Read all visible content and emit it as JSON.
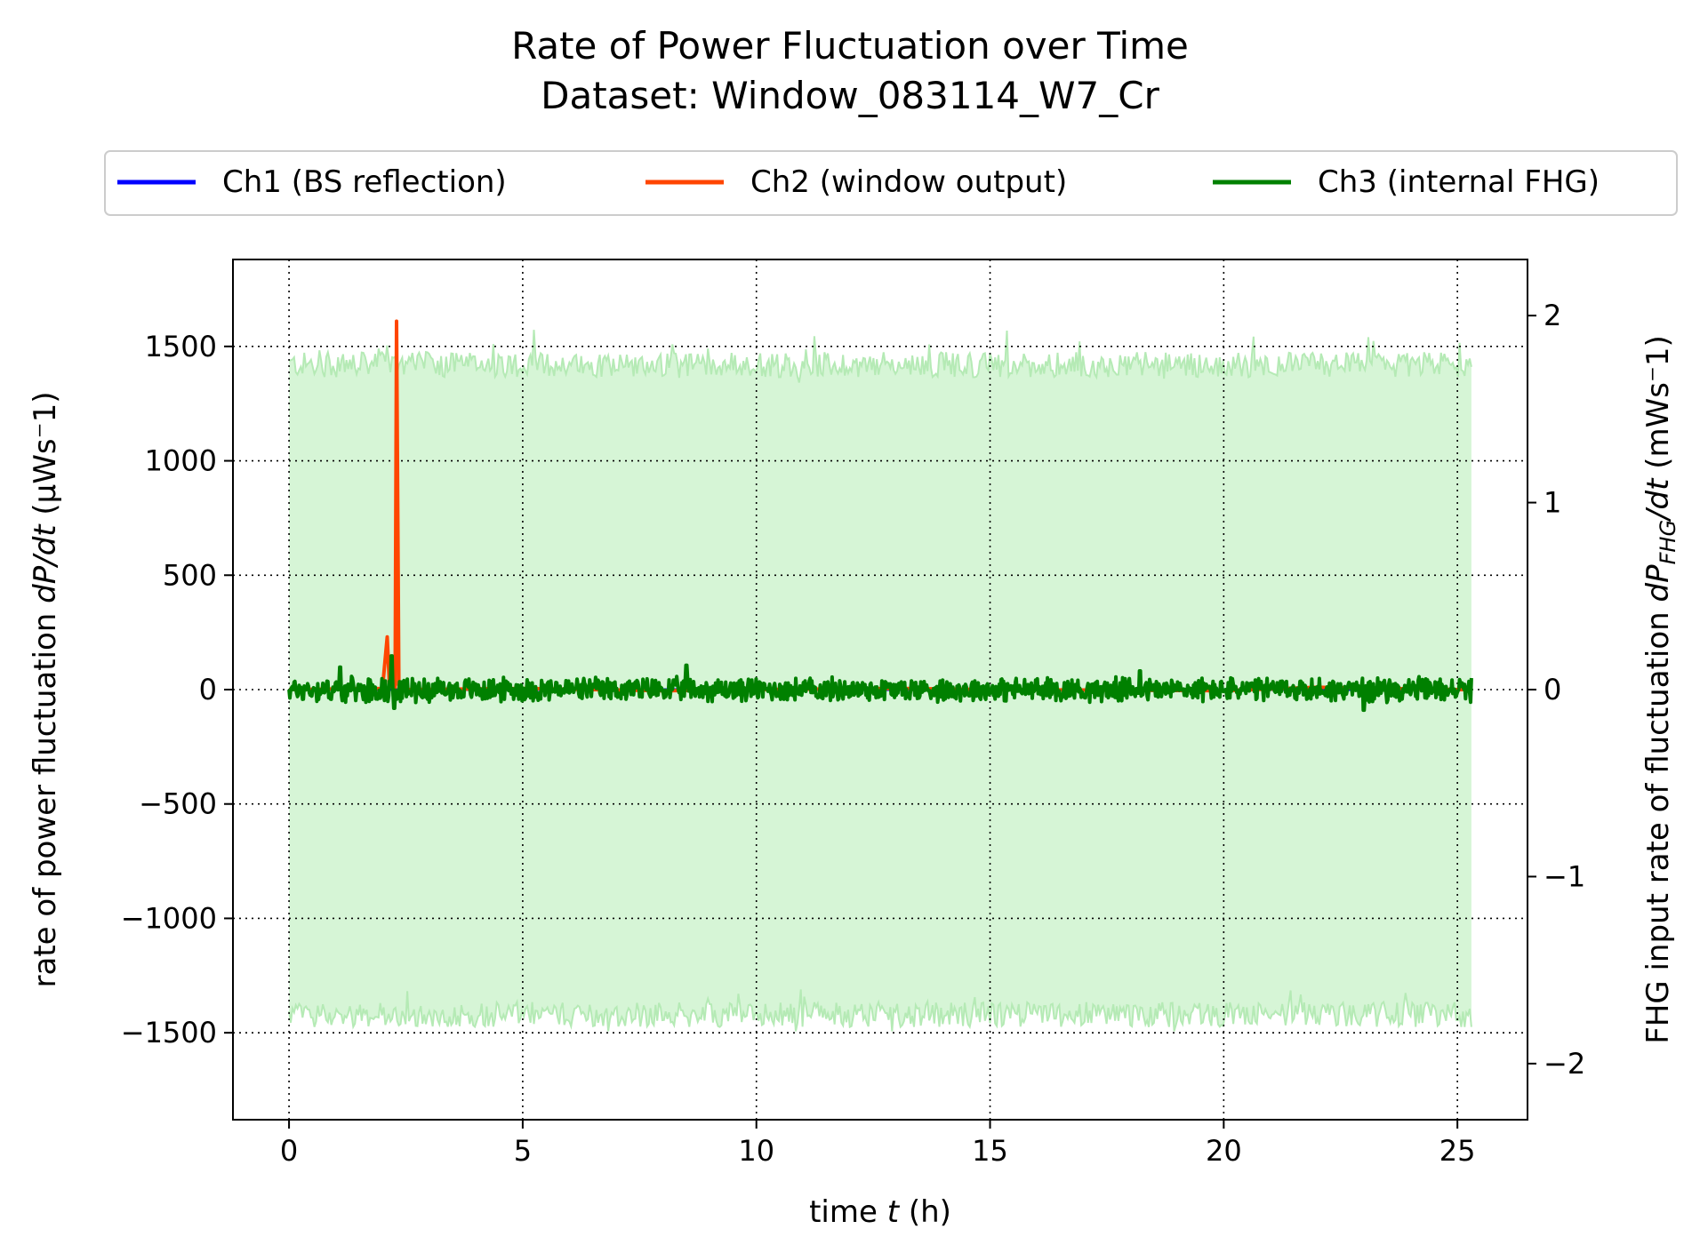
{
  "chart_data": {
    "type": "line",
    "title": "Rate of Power Fluctuation over Time",
    "subtitle": "Dataset: Window_083114_W7_Cr",
    "xlabel_prefix": "time ",
    "xlabel_var": "t",
    "xlabel_suffix": " (h)",
    "ylabel_left_prefix": "rate of power fluctuation ",
    "ylabel_left_var": "dP/dt",
    "ylabel_left_unit": " (μWs⁻1)",
    "ylabel_right_prefix": "FHG input rate of fluctuation ",
    "ylabel_right_var": "dP",
    "ylabel_right_sub": "FHG",
    "ylabel_right_tail": "/dt",
    "ylabel_right_unit": " (mWs⁻1)",
    "xlim": [
      -1.2,
      26.5
    ],
    "ylim_left": [
      -1880,
      1880
    ],
    "ylim_right": [
      -2.3,
      2.3
    ],
    "xticks": [
      0,
      5,
      10,
      15,
      20,
      25
    ],
    "yticks_left": [
      1500,
      1000,
      500,
      0,
      -500,
      -1000,
      -1500
    ],
    "yticks_left_labels": [
      "1500",
      "1000",
      "500",
      "0",
      "−500",
      "−1000",
      "−1500"
    ],
    "yticks_right": [
      2,
      1,
      0,
      -1,
      -2
    ],
    "yticks_right_labels": [
      "2",
      "1",
      "0",
      "−1",
      "−2"
    ],
    "grid": true,
    "legend_position": "top, above plot",
    "series": [
      {
        "name": "Ch1 (BS reflection)",
        "color": "#0000ff",
        "axis": "left",
        "points": [
          [
            0,
            0
          ],
          [
            25.3,
            0
          ]
        ]
      },
      {
        "name": "Ch2 (window output)",
        "color": "#ff4500",
        "axis": "left",
        "points": [
          [
            0,
            0
          ],
          [
            2.0,
            5
          ],
          [
            2.1,
            230
          ],
          [
            2.15,
            10
          ],
          [
            2.2,
            120
          ],
          [
            2.27,
            0
          ],
          [
            2.3,
            1610
          ],
          [
            2.35,
            20
          ],
          [
            2.42,
            0
          ],
          [
            5,
            5
          ],
          [
            8,
            -5
          ],
          [
            10,
            0
          ],
          [
            13,
            5
          ],
          [
            15,
            0
          ],
          [
            20,
            -5
          ],
          [
            22,
            10
          ],
          [
            25,
            0
          ],
          [
            25.3,
            0
          ]
        ]
      },
      {
        "name": "Ch3 (internal FHG)",
        "color": "#008000",
        "axis": "right",
        "band_color": "#d6f5d6",
        "band_edge_color": "#b5eab5",
        "band_range_left_units": [
          -1420,
          1420
        ],
        "band_x": [
          0,
          25.3
        ],
        "noise_amplitude_right_units": 0.06,
        "spikes": [
          [
            2.2,
            0.18
          ],
          [
            2.25,
            -0.1
          ],
          [
            8.5,
            0.13
          ],
          [
            1.1,
            0.12
          ],
          [
            18.2,
            0.1
          ],
          [
            23.0,
            -0.11
          ]
        ]
      }
    ]
  }
}
